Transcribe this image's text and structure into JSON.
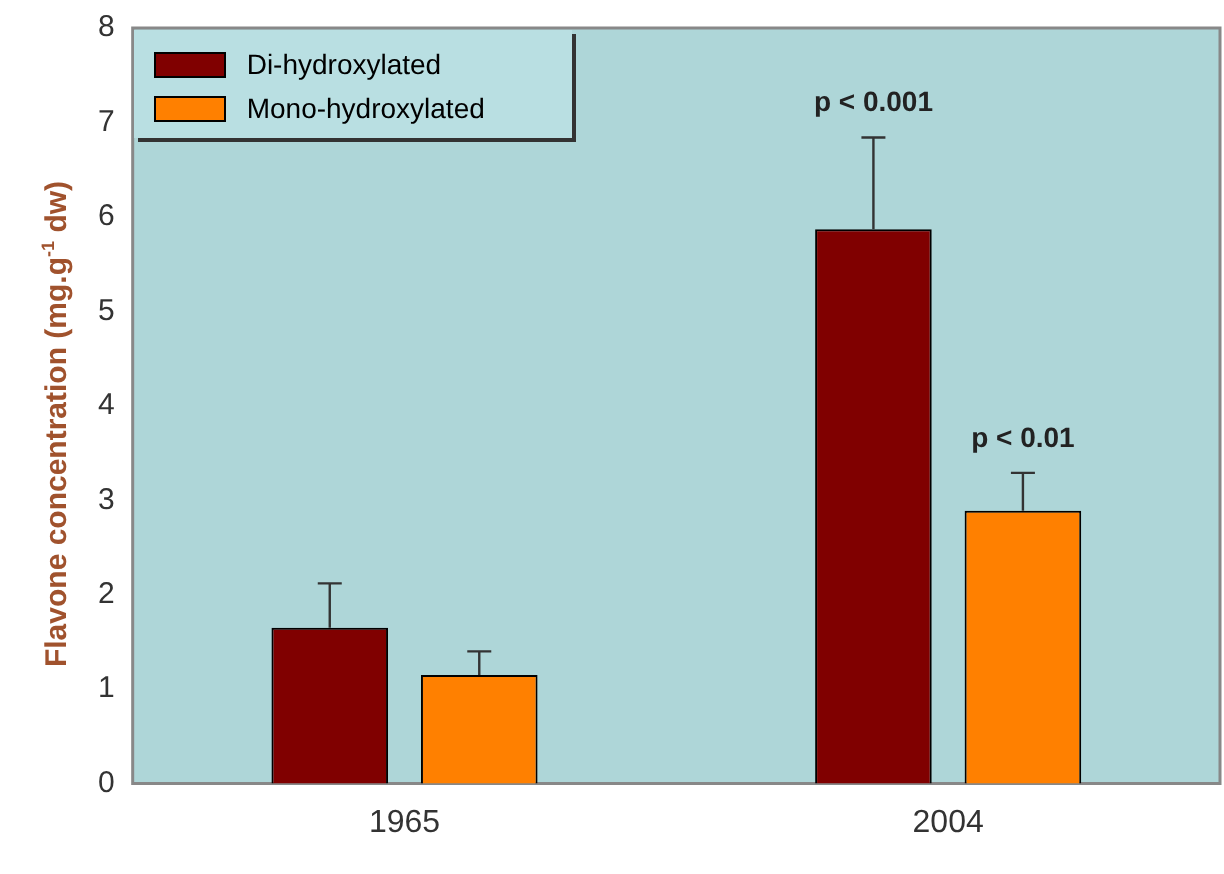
{
  "chart_data": {
    "type": "bar",
    "ylabel": "Flavone concentration (mg.g$^{-1}$ dw)",
    "categories": [
      "1965",
      "2004"
    ],
    "series": [
      {
        "name": "Di-hydroxylated",
        "color": "#800000",
        "values": [
          1.65,
          5.87
        ],
        "errors": [
          [
            1.65,
            2.12
          ],
          [
            5.87,
            6.84
          ]
        ]
      },
      {
        "name": "Mono-hydroxylated",
        "color": "#ff8000",
        "values": [
          1.15,
          2.89
        ],
        "errors": [
          [
            1.15,
            1.4
          ],
          [
            2.89,
            3.29
          ]
        ]
      }
    ],
    "ylim": [
      0,
      8
    ],
    "yticks": [
      0,
      1,
      2,
      3,
      4,
      5,
      6,
      7,
      8
    ],
    "grid": false,
    "legend": "top left",
    "annotations": [
      "p < 0.001",
      "p < 0.01"
    ]
  }
}
